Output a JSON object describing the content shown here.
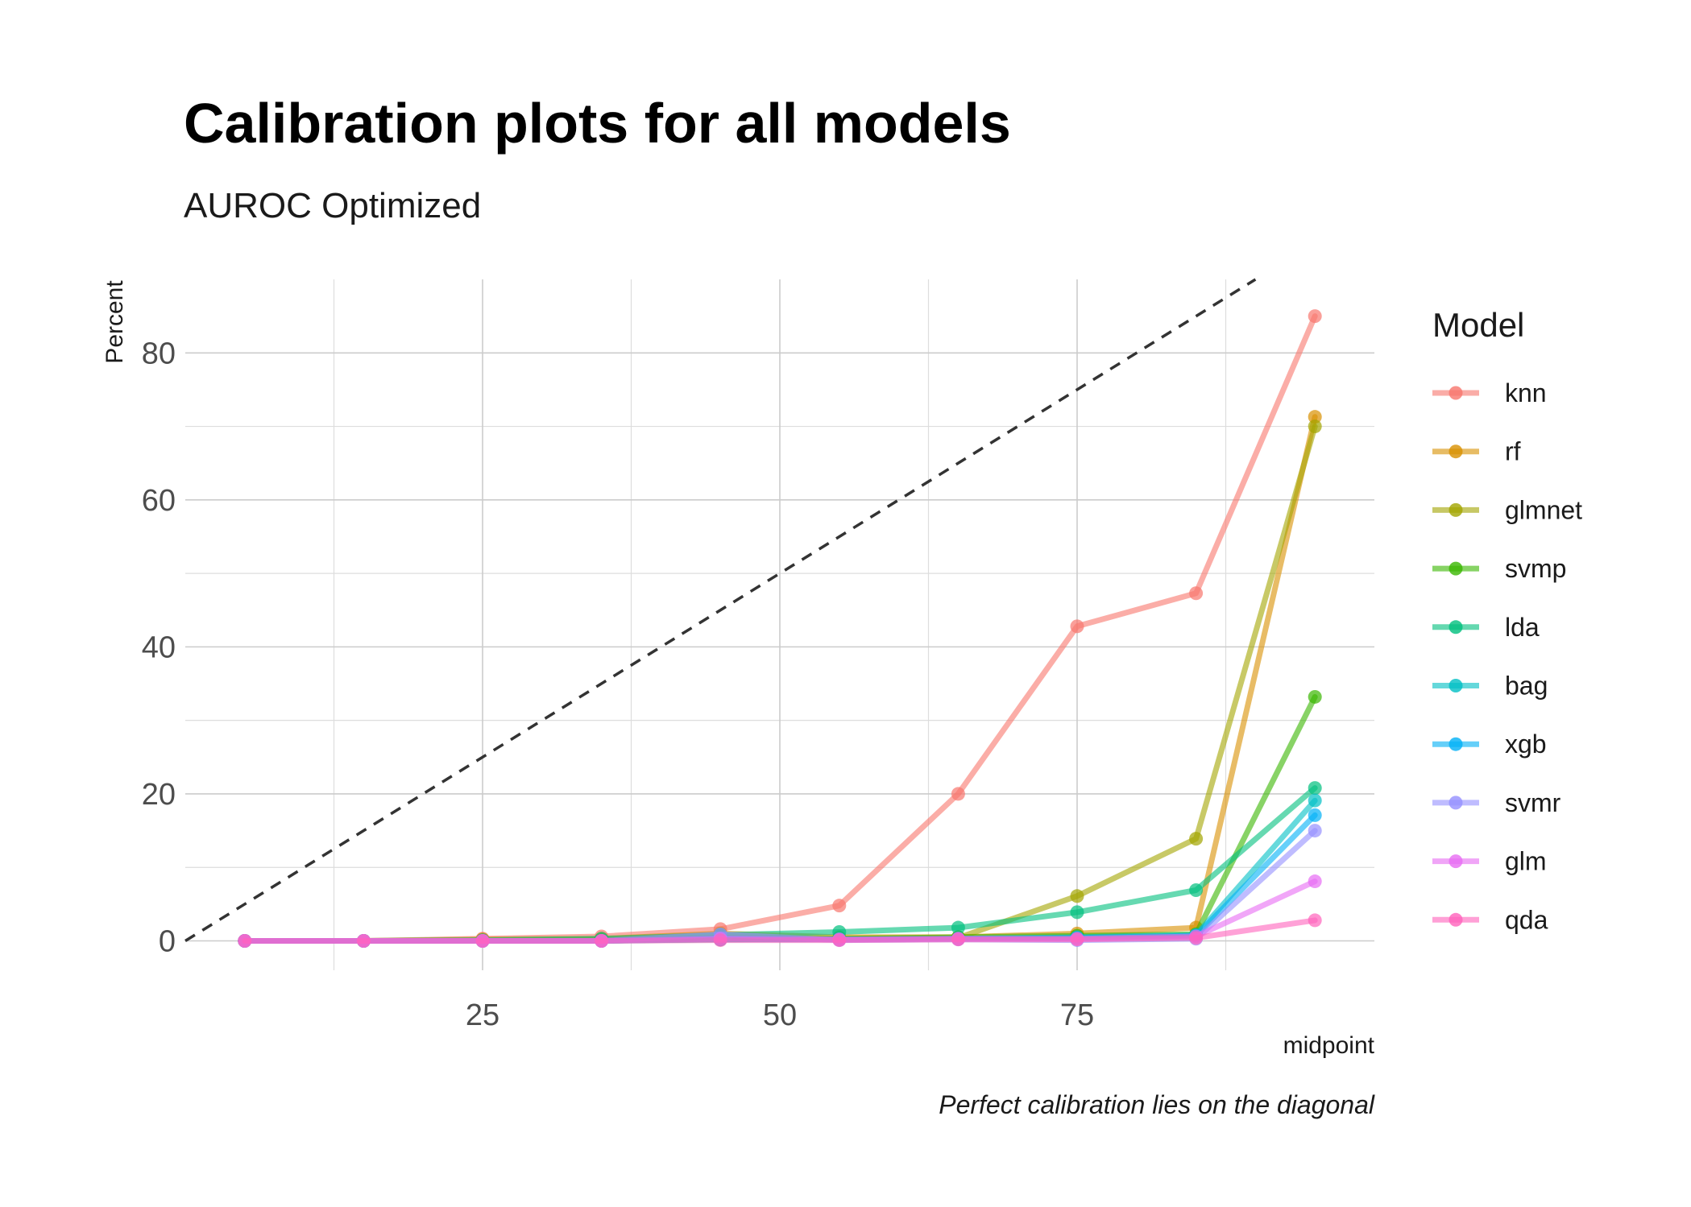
{
  "chart_data": {
    "type": "line",
    "title": "Calibration plots for all models",
    "subtitle": "AUROC Optimized",
    "caption": "Perfect calibration lies on the diagonal",
    "xlabel": "midpoint",
    "ylabel": "Percent",
    "xlim": [
      0,
      100
    ],
    "ylim": [
      -4,
      90
    ],
    "x_ticks": [
      25,
      50,
      75
    ],
    "x_tick_labels": [
      "25",
      "50",
      "75"
    ],
    "y_ticks": [
      0,
      20,
      40,
      60,
      80
    ],
    "y_tick_labels": [
      "0",
      "20",
      "40",
      "60",
      "80"
    ],
    "grid": true,
    "legend": {
      "title": "Model",
      "position": "right"
    },
    "reference_line": {
      "type": "diagonal",
      "slope": 1,
      "intercept": 0,
      "style": "dashed"
    },
    "x": [
      5,
      15,
      25,
      35,
      45,
      55,
      65,
      75,
      85,
      95
    ],
    "series": [
      {
        "name": "knn",
        "color": "#F8766D",
        "values": [
          0,
          0,
          0.3,
          0.6,
          1.6,
          4.8,
          20,
          42.8,
          47.3,
          85
        ]
      },
      {
        "name": "rf",
        "color": "#D89000",
        "values": [
          0,
          0,
          0.2,
          0.3,
          1.0,
          0.5,
          0.5,
          1.0,
          1.8,
          71.3
        ]
      },
      {
        "name": "glmnet",
        "color": "#A3A500",
        "values": [
          0,
          0,
          0,
          0.1,
          0.4,
          0.3,
          0.4,
          6.1,
          13.9,
          70
        ]
      },
      {
        "name": "svmp",
        "color": "#39B600",
        "values": [
          0,
          0,
          0,
          0,
          0.2,
          0.3,
          0.5,
          0.7,
          0.9,
          33.2
        ]
      },
      {
        "name": "lda",
        "color": "#00BF7D",
        "values": [
          0,
          0,
          0.1,
          0.3,
          0.8,
          1.2,
          1.8,
          3.9,
          6.9,
          20.8
        ]
      },
      {
        "name": "bag",
        "color": "#00BFC4",
        "values": [
          0,
          0,
          0,
          0,
          0.3,
          0.2,
          0.3,
          0.5,
          0.8,
          19.1
        ]
      },
      {
        "name": "xgb",
        "color": "#00B0F6",
        "values": [
          0,
          0,
          0,
          0,
          0.2,
          0.2,
          0.3,
          0.4,
          0.7,
          17.1
        ]
      },
      {
        "name": "svmr",
        "color": "#9590FF",
        "values": [
          0,
          0,
          0,
          0,
          0.9,
          0.1,
          0.2,
          0.1,
          0.3,
          15
        ]
      },
      {
        "name": "glm",
        "color": "#E76BF3",
        "values": [
          0,
          0,
          0,
          0,
          0.3,
          0.2,
          0.3,
          0.3,
          0.6,
          8.1
        ]
      },
      {
        "name": "qda",
        "color": "#FF62BC",
        "values": [
          0,
          0,
          0,
          0,
          0.1,
          0.1,
          0.2,
          0.2,
          0.4,
          2.8
        ]
      }
    ]
  }
}
